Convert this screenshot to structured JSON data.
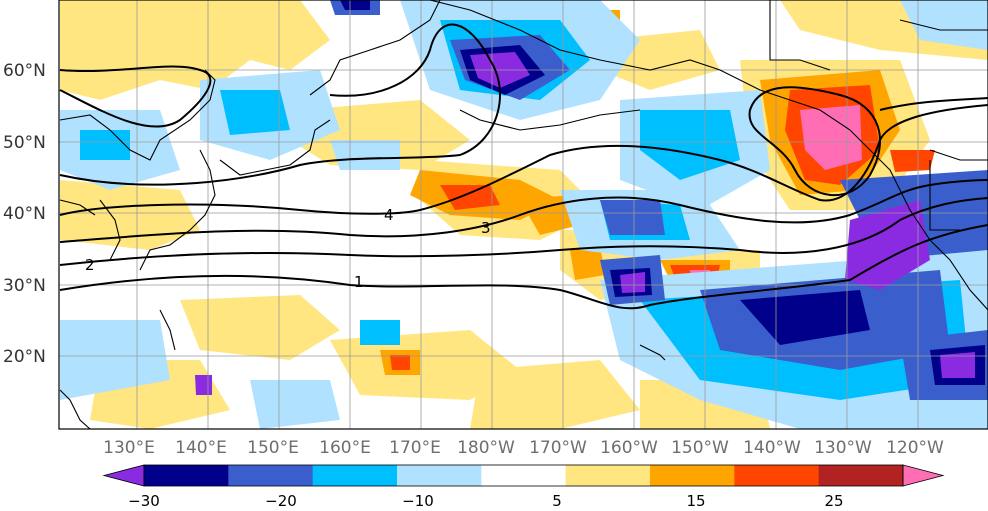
{
  "map": {
    "lat_labels": [
      "60°N",
      "50°N",
      "40°N",
      "30°N",
      "20°N"
    ],
    "lon_labels": [
      "130°E",
      "140°E",
      "150°E",
      "160°E",
      "170°E",
      "180°W",
      "170°W",
      "160°W",
      "150°W",
      "140°W",
      "130°W",
      "120°W"
    ],
    "contour_labels": [
      "4",
      "3",
      "2",
      "1"
    ],
    "colorbar": {
      "tick_labels": [
        "−30",
        "−20",
        "−10",
        "5",
        "15",
        "25"
      ],
      "colors": [
        "#8a2be2",
        "#00008b",
        "#3a5fcd",
        "#00bfff",
        "#b0e2ff",
        "#ffffff",
        "#ffe680",
        "#ffa500",
        "#ff4500",
        "#b22222",
        "#ff6eb4"
      ]
    },
    "land_outline_color": "#000000",
    "grid_color": "#9a9a9a"
  }
}
